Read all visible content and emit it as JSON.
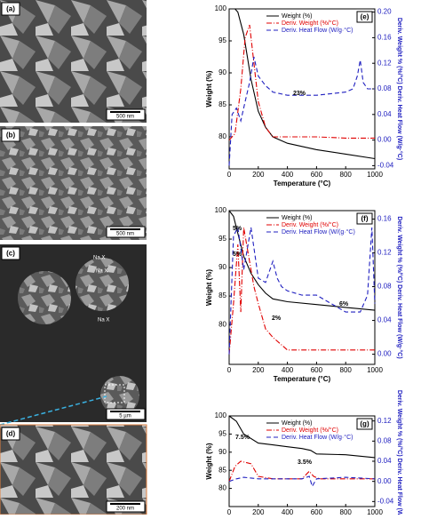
{
  "images": [
    {
      "label": "(a)",
      "scale": "500 nm"
    },
    {
      "label": "(b)",
      "scale": "500 nm"
    },
    {
      "label": "(c)",
      "scale": "5 µm",
      "notes": [
        "Na X",
        "Na X",
        "Na X"
      ]
    },
    {
      "label": "(d)",
      "scale": "200 nm"
    }
  ],
  "chart_data": [
    {
      "type": "line",
      "panel": "(e)",
      "xlabel": "Temperature (°C)",
      "ylabel": "Weight (%)",
      "y2label": "Deriv. Weight % (%/°C)  Deriv. Heat Flow (W/g·°C)",
      "xlim": [
        0,
        1000
      ],
      "xticks": [
        0,
        200,
        400,
        600,
        800,
        1000
      ],
      "ylim": [
        75,
        100
      ],
      "yticks": [
        80,
        85,
        90,
        95,
        100
      ],
      "y2lim": [
        -0.045,
        0.205
      ],
      "y2ticks": [
        -0.04,
        {
          "value": 0,
          "label": "0.00"
        },
        0.04,
        0.08,
        0.12,
        0.16,
        {
          "value": 0.2,
          "label": "0.20"
        }
      ],
      "annotations": [
        "23%"
      ],
      "legend": "top-right",
      "series": [
        {
          "name": "Weight (%)",
          "color": "#000000",
          "x": [
            0,
            40,
            60,
            100,
            150,
            200,
            250,
            300,
            400,
            500,
            600,
            800,
            1000
          ],
          "values": [
            100,
            100,
            99.5,
            96,
            89,
            84,
            81.5,
            80,
            79,
            78.5,
            78,
            77.3,
            76.6
          ]
        },
        {
          "name": "Deriv. Weight (%/°C)",
          "color": "#e00000",
          "axis": "y2",
          "x": [
            0,
            40,
            80,
            110,
            140,
            170,
            200,
            250,
            300,
            400,
            600,
            800,
            1000
          ],
          "values": [
            0,
            0.01,
            0.08,
            0.16,
            0.18,
            0.12,
            0.06,
            0.02,
            0.005,
            0.005,
            0.005,
            0.003,
            0.003
          ]
        },
        {
          "name": "Deriv. Heat Flow (W/g·°C)",
          "color": "#2020c0",
          "axis": "y2",
          "x": [
            0,
            20,
            50,
            80,
            110,
            140,
            170,
            200,
            250,
            300,
            400,
            600,
            800,
            850,
            880,
            900,
            920,
            950,
            1000
          ],
          "values": [
            -0.04,
            0.04,
            0.05,
            0.03,
            0.06,
            0.09,
            0.13,
            0.1,
            0.085,
            0.075,
            0.07,
            0.07,
            0.075,
            0.08,
            0.1,
            0.125,
            0.09,
            0.08,
            0.08
          ]
        }
      ]
    },
    {
      "type": "line",
      "panel": "(f)",
      "xlabel": "Temperature (°C)",
      "ylabel": "Weight (%)",
      "y2label": "Deriv. Weight % (%/°C)  Deriv. Heat Flow (W/g·°C)",
      "xlim": [
        0,
        1000
      ],
      "xticks": [
        0,
        200,
        400,
        600,
        800,
        1000
      ],
      "ylim": [
        73,
        100
      ],
      "yticks": [
        80,
        85,
        90,
        95,
        100
      ],
      "y2lim": [
        -0.012,
        0.17
      ],
      "y2ticks": [
        {
          "value": 0,
          "label": "0.00"
        },
        0.04,
        0.08,
        0.12,
        0.16
      ],
      "annotations": [
        "5%",
        "5%",
        "6%",
        "2%"
      ],
      "legend": "top-right",
      "series": [
        {
          "name": "Weight (%)",
          "color": "#000000",
          "x": [
            0,
            30,
            60,
            100,
            150,
            200,
            250,
            300,
            400,
            600,
            800,
            1000
          ],
          "values": [
            100,
            99,
            96,
            92,
            89,
            87,
            85.5,
            84.5,
            84,
            83.5,
            83,
            82.5
          ]
        },
        {
          "name": "Deriv. Weight (%/°C)",
          "color": "#e00000",
          "axis": "y2",
          "x": [
            0,
            30,
            60,
            80,
            100,
            130,
            150,
            170,
            200,
            250,
            300,
            400,
            600,
            1000
          ],
          "values": [
            0,
            0.06,
            0.13,
            0.05,
            0.15,
            0.12,
            0.1,
            0.08,
            0.06,
            0.03,
            0.02,
            0.005,
            0.005,
            0.005
          ]
        },
        {
          "name": "Deriv. Heat Flow (W/(g·°C)",
          "color": "#2020c0",
          "axis": "y2",
          "x": [
            0,
            30,
            60,
            100,
            150,
            200,
            250,
            300,
            330,
            360,
            400,
            500,
            600,
            800,
            900,
            950,
            980,
            1000
          ],
          "values": [
            0,
            0.14,
            0.15,
            0.1,
            0.15,
            0.09,
            0.085,
            0.11,
            0.09,
            0.08,
            0.075,
            0.07,
            0.07,
            0.05,
            0.05,
            0.07,
            0.15,
            0.06
          ]
        }
      ]
    },
    {
      "type": "line",
      "panel": "(g)",
      "xlabel": "Temperature (°C)",
      "ylabel": "Weight (%)",
      "y2label": "Deriv. Weight % (%/°C)  Deriv. Heat Flow (W/g·°C)",
      "xlim": [
        0,
        1000
      ],
      "xticks": [
        0,
        200,
        400,
        600,
        800,
        1000
      ],
      "ylim": [
        75,
        100
      ],
      "yticks": [
        80,
        85,
        90,
        95,
        100
      ],
      "y2lim": [
        -0.05,
        0.13
      ],
      "y2ticks": [
        -0.04,
        {
          "value": 0,
          "label": "0.00"
        },
        0.04,
        0.08,
        0.12
      ],
      "annotations": [
        "7.5%",
        "3.5%"
      ],
      "legend": "top-right",
      "series": [
        {
          "name": "Weight (%)",
          "color": "#000000",
          "x": [
            0,
            50,
            100,
            200,
            300,
            400,
            500,
            560,
            600,
            800,
            1000
          ],
          "values": [
            100,
            98.5,
            95,
            92.5,
            92,
            91.5,
            91,
            90.5,
            89.5,
            89.3,
            88.5
          ]
        },
        {
          "name": "Deriv. Weight (%/°C)",
          "color": "#e00000",
          "axis": "y2",
          "x": [
            0,
            40,
            80,
            150,
            200,
            300,
            500,
            550,
            580,
            620,
            800,
            1000
          ],
          "values": [
            0,
            0.03,
            0.04,
            0.035,
            0.01,
            0.005,
            0.005,
            0.02,
            0.01,
            0.005,
            0.005,
            0.005
          ]
        },
        {
          "name": "Deriv. Heat Flow (W/g·°C)",
          "color": "#2020c0",
          "axis": "y2",
          "x": [
            0,
            50,
            100,
            200,
            300,
            500,
            550,
            570,
            600,
            800,
            1000
          ],
          "values": [
            0,
            0.005,
            0.008,
            0.005,
            0.005,
            0.005,
            0.01,
            -0.01,
            0.005,
            0.008,
            0.005
          ]
        }
      ]
    }
  ]
}
